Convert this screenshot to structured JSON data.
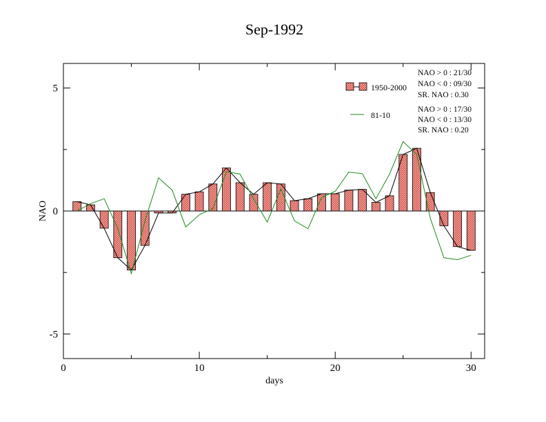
{
  "chart_data": {
    "type": "bar",
    "title": "Sep-1992",
    "xlabel": "days",
    "ylabel": "NAO",
    "xlim": [
      0,
      31
    ],
    "ylim": [
      -6,
      6
    ],
    "x_ticks": [
      0,
      10,
      20,
      30
    ],
    "y_ticks": [
      -5,
      0,
      5
    ],
    "x": [
      1,
      2,
      3,
      4,
      5,
      6,
      7,
      8,
      9,
      10,
      11,
      12,
      13,
      14,
      15,
      16,
      17,
      18,
      19,
      20,
      21,
      22,
      23,
      24,
      25,
      26,
      27,
      28,
      29,
      30
    ],
    "series": [
      {
        "name": "1950-2000",
        "kind": "bar+line",
        "values": [
          0.38,
          0.25,
          -0.7,
          -1.9,
          -2.4,
          -1.4,
          -0.08,
          -0.08,
          0.68,
          0.78,
          1.1,
          1.75,
          1.15,
          0.68,
          1.15,
          1.1,
          0.42,
          0.5,
          0.7,
          0.7,
          0.85,
          0.88,
          0.35,
          0.62,
          2.3,
          2.55,
          0.75,
          -0.6,
          -1.45,
          -1.6
        ]
      },
      {
        "name": "81-10",
        "kind": "line",
        "values": [
          0.0,
          0.3,
          0.5,
          -0.7,
          -2.55,
          -0.4,
          1.35,
          0.85,
          -0.65,
          -0.15,
          0.1,
          1.6,
          1.5,
          0.5,
          -0.45,
          0.9,
          -0.4,
          -0.72,
          0.55,
          0.8,
          1.58,
          1.52,
          0.5,
          1.5,
          2.82,
          2.3,
          -0.3,
          -1.9,
          -1.98,
          -1.8
        ]
      }
    ],
    "stats": [
      [
        "NAO > 0 : 21/30",
        "NAO < 0 : 09/30",
        "SR. NAO :  0.30"
      ],
      [
        "NAO > 0 : 17/30",
        "NAO < 0 : 13/30",
        "SR. NAO :  0.20"
      ]
    ],
    "colors": {
      "bar_fill": "#f4a3a0",
      "bar_hatch": "#c0392b",
      "mean_line": "#000000",
      "series2_line": "#1a8a1a"
    }
  }
}
